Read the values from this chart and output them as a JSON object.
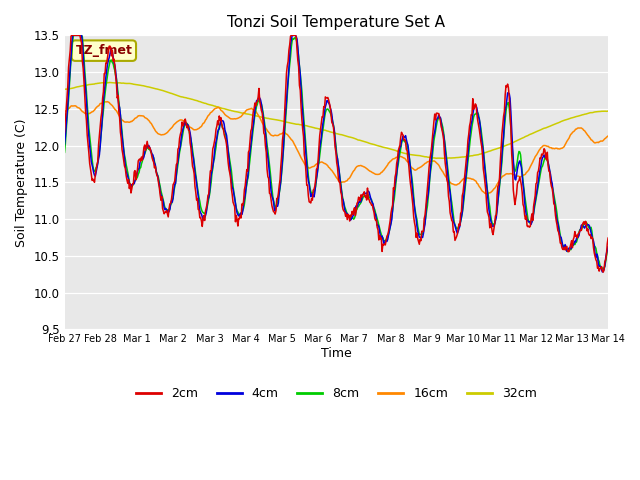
{
  "title": "Tonzi Soil Temperature Set A",
  "xlabel": "Time",
  "ylabel": "Soil Temperature (C)",
  "ylim": [
    9.5,
    13.5
  ],
  "yticks": [
    9.5,
    10.0,
    10.5,
    11.0,
    11.5,
    12.0,
    12.5,
    13.0,
    13.5
  ],
  "xtick_labels": [
    "Feb 27",
    "Feb 28",
    "Mar 1",
    "Mar 2",
    "Mar 3",
    "Mar 4",
    "Mar 5",
    "Mar 6",
    "Mar 7",
    "Mar 8",
    "Mar 9",
    "Mar 10",
    "Mar 11",
    "Mar 12",
    "Mar 13",
    "Mar 14"
  ],
  "annotation": "TZ_fmet",
  "line_colors": {
    "2cm": "#dd0000",
    "4cm": "#0000dd",
    "8cm": "#00cc00",
    "16cm": "#ff8800",
    "32cm": "#cccc00"
  },
  "background_color": "#e8e8e8",
  "n_points": 672,
  "days": 15
}
